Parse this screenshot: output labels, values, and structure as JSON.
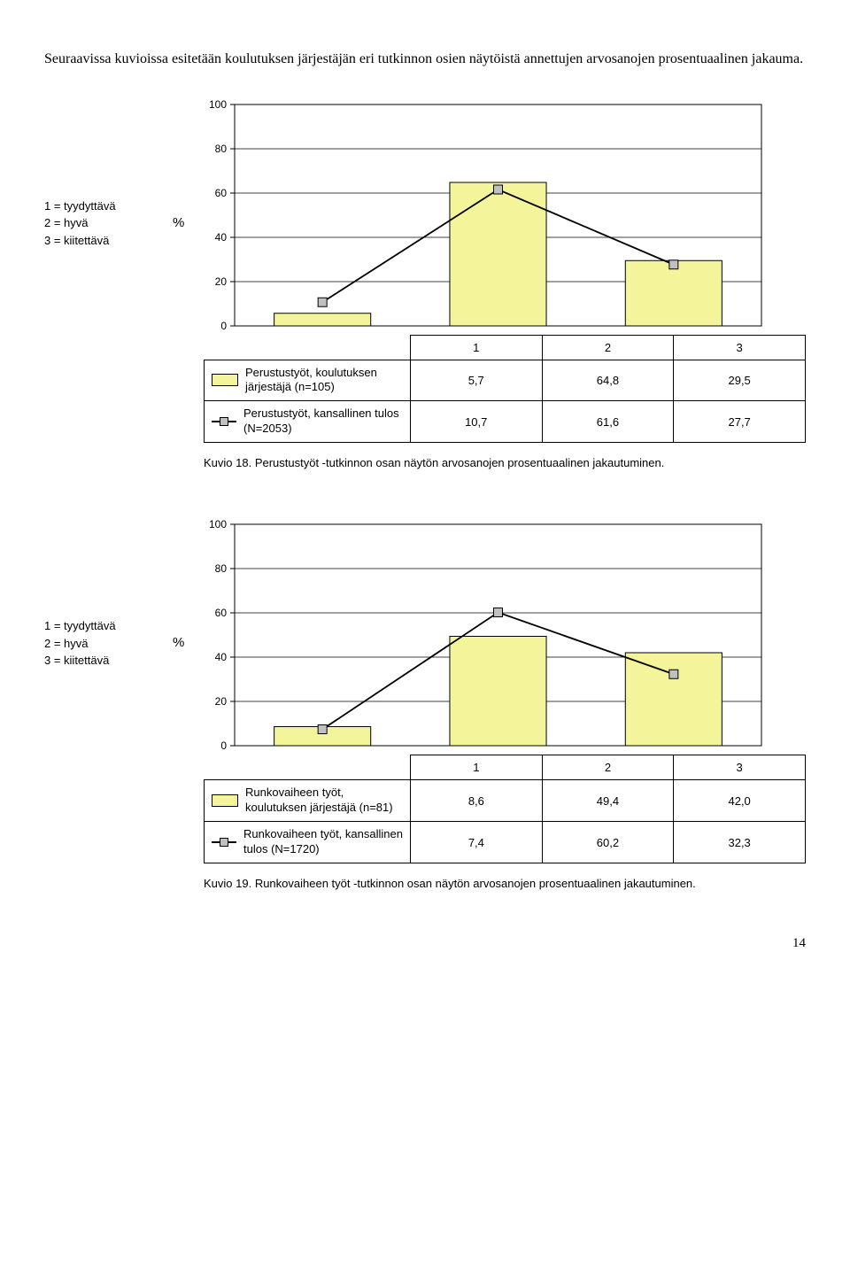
{
  "intro_text": "Seuraavissa kuvioissa esitetään koulutuksen järjestäjän eri tutkinnon osien näytöistä annettujen arvosanojen prosentuaalinen jakauma.",
  "legend_lines": [
    "1 = tyydyttävä",
    "2 = hyvä",
    "3 = kiitettävä"
  ],
  "percent_symbol": "%",
  "chart1": {
    "ylim": [
      0,
      100
    ],
    "yticks": [
      0,
      20,
      40,
      60,
      80,
      100
    ],
    "categories": [
      "1",
      "2",
      "3"
    ],
    "bar_values": [
      5.7,
      64.8,
      29.5
    ],
    "line_values": [
      10.7,
      61.6,
      27.7
    ],
    "bar_color": "#f4f49a",
    "marker_fill": "#c0c0c0",
    "grid_color": "#000000",
    "plot_border": "#000000",
    "row1_label": "Perustustyöt, koulutuksen järjestäjä (n=105)",
    "row2_label": "Perustustyöt, kansallinen tulos (N=2053)",
    "row1_vals": [
      "5,7",
      "64,8",
      "29,5"
    ],
    "row2_vals": [
      "10,7",
      "61,6",
      "27,7"
    ],
    "caption": "Kuvio 18. Perustustyöt -tutkinnon osan näytön arvosanojen prosentuaalinen jakautuminen."
  },
  "chart2": {
    "ylim": [
      0,
      100
    ],
    "yticks": [
      0,
      20,
      40,
      60,
      80,
      100
    ],
    "categories": [
      "1",
      "2",
      "3"
    ],
    "bar_values": [
      8.6,
      49.4,
      42.0
    ],
    "line_values": [
      7.4,
      60.2,
      32.3
    ],
    "bar_color": "#f4f49a",
    "marker_fill": "#c0c0c0",
    "grid_color": "#000000",
    "plot_border": "#000000",
    "row1_label": "Runkovaiheen työt, koulutuksen järjestäjä (n=81)",
    "row2_label": "Runkovaiheen työt, kansallinen tulos (N=1720)",
    "row1_vals": [
      "8,6",
      "49,4",
      "42,0"
    ],
    "row2_vals": [
      "7,4",
      "60,2",
      "32,3"
    ],
    "caption": "Kuvio 19. Runkovaiheen työt -tutkinnon osan näytön arvosanojen prosentuaalinen jakautuminen."
  },
  "page_number": "14"
}
